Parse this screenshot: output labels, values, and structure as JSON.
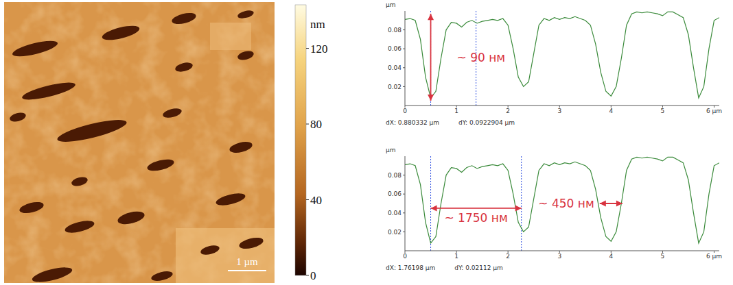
{
  "afm_image": {
    "colorbar": {
      "label": "nm",
      "range": [
        0,
        143
      ],
      "ticks": [
        0,
        40,
        80,
        120
      ]
    },
    "scale_bar": "1 µm"
  },
  "chart_data": [
    {
      "type": "line",
      "x": [
        0,
        0.1,
        0.2,
        0.3,
        0.4,
        0.5,
        0.6,
        0.7,
        0.8,
        0.9,
        1.0,
        1.1,
        1.2,
        1.3,
        1.4,
        1.5,
        1.6,
        1.7,
        1.8,
        1.9,
        2.0,
        2.1,
        2.2,
        2.3,
        2.4,
        2.5,
        2.6,
        2.7,
        2.8,
        2.9,
        3.0,
        3.1,
        3.2,
        3.3,
        3.4,
        3.5,
        3.6,
        3.7,
        3.8,
        3.9,
        4.0,
        4.1,
        4.2,
        4.3,
        4.4,
        4.5,
        4.6,
        4.7,
        4.8,
        4.9,
        5.0,
        5.1,
        5.2,
        5.3,
        5.4,
        5.5,
        5.6,
        5.7,
        5.8,
        5.9,
        6.0,
        6.1
      ],
      "values": [
        0.091,
        0.092,
        0.09,
        0.07,
        0.03,
        0.008,
        0.015,
        0.05,
        0.08,
        0.088,
        0.087,
        0.083,
        0.088,
        0.09,
        0.087,
        0.089,
        0.09,
        0.091,
        0.09,
        0.092,
        0.085,
        0.06,
        0.03,
        0.02,
        0.025,
        0.055,
        0.085,
        0.092,
        0.09,
        0.093,
        0.091,
        0.093,
        0.092,
        0.094,
        0.092,
        0.09,
        0.085,
        0.065,
        0.035,
        0.015,
        0.01,
        0.02,
        0.05,
        0.085,
        0.097,
        0.099,
        0.098,
        0.099,
        0.098,
        0.097,
        0.095,
        0.099,
        0.099,
        0.096,
        0.093,
        0.075,
        0.04,
        0.008,
        0.02,
        0.06,
        0.09,
        0.093
      ],
      "color": "#3a8a3a",
      "grid": false,
      "xlim": [
        0,
        6.1
      ],
      "xticks": [
        0,
        1,
        2,
        3,
        4,
        5,
        {
          "value": 6,
          "label": "6 µm"
        }
      ],
      "ylim": [
        0,
        0.1
      ],
      "yticks": [
        0.02,
        0.04,
        0.06,
        0.08
      ],
      "ylabel": "µm",
      "cursors": [
        0.5,
        1.38
      ],
      "readouts": [
        "dX: 0.880332 µm",
        "dY: 0.0922904 µm"
      ],
      "annotations": [
        {
          "text": "~ 90 нм",
          "x": [
            0.5,
            0.5
          ],
          "y": [
            0.005,
            0.097
          ],
          "color": "#d8333f"
        }
      ]
    },
    {
      "type": "line",
      "x": [
        0,
        0.1,
        0.2,
        0.3,
        0.4,
        0.5,
        0.6,
        0.7,
        0.8,
        0.9,
        1.0,
        1.1,
        1.2,
        1.3,
        1.4,
        1.5,
        1.6,
        1.7,
        1.8,
        1.9,
        2.0,
        2.1,
        2.2,
        2.3,
        2.4,
        2.5,
        2.6,
        2.7,
        2.8,
        2.9,
        3.0,
        3.1,
        3.2,
        3.3,
        3.4,
        3.5,
        3.6,
        3.7,
        3.8,
        3.9,
        4.0,
        4.1,
        4.2,
        4.3,
        4.4,
        4.5,
        4.6,
        4.7,
        4.8,
        4.9,
        5.0,
        5.1,
        5.2,
        5.3,
        5.4,
        5.5,
        5.6,
        5.7,
        5.8,
        5.9,
        6.0,
        6.1
      ],
      "values": [
        0.091,
        0.092,
        0.09,
        0.07,
        0.03,
        0.008,
        0.015,
        0.05,
        0.08,
        0.088,
        0.087,
        0.083,
        0.088,
        0.09,
        0.087,
        0.089,
        0.09,
        0.091,
        0.09,
        0.092,
        0.085,
        0.06,
        0.03,
        0.02,
        0.025,
        0.055,
        0.085,
        0.092,
        0.09,
        0.093,
        0.091,
        0.093,
        0.092,
        0.094,
        0.092,
        0.09,
        0.085,
        0.065,
        0.035,
        0.015,
        0.01,
        0.02,
        0.05,
        0.085,
        0.097,
        0.099,
        0.098,
        0.099,
        0.098,
        0.097,
        0.095,
        0.099,
        0.099,
        0.096,
        0.093,
        0.075,
        0.04,
        0.008,
        0.02,
        0.06,
        0.09,
        0.093
      ],
      "color": "#3a8a3a",
      "grid": false,
      "xlim": [
        0,
        6.1
      ],
      "xticks": [
        0,
        1,
        2,
        3,
        4,
        5,
        {
          "value": 6,
          "label": "6 µm"
        }
      ],
      "ylim": [
        0,
        0.1
      ],
      "yticks": [
        0.02,
        0.04,
        0.06,
        0.08
      ],
      "ylabel": "µm",
      "cursors": [
        0.5,
        2.26
      ],
      "readouts": [
        "dX: 1.76198 µm",
        "dY: 0.02112 µm"
      ],
      "annotations": [
        {
          "text": "~ 1750 нм",
          "x": [
            0.5,
            2.26
          ],
          "y": [
            0.045,
            0.045
          ],
          "color": "#d8333f"
        },
        {
          "text": "~ 450 нм",
          "x": [
            3.78,
            4.22
          ],
          "y": [
            0.05,
            0.05
          ],
          "color": "#d8333f"
        }
      ]
    }
  ]
}
